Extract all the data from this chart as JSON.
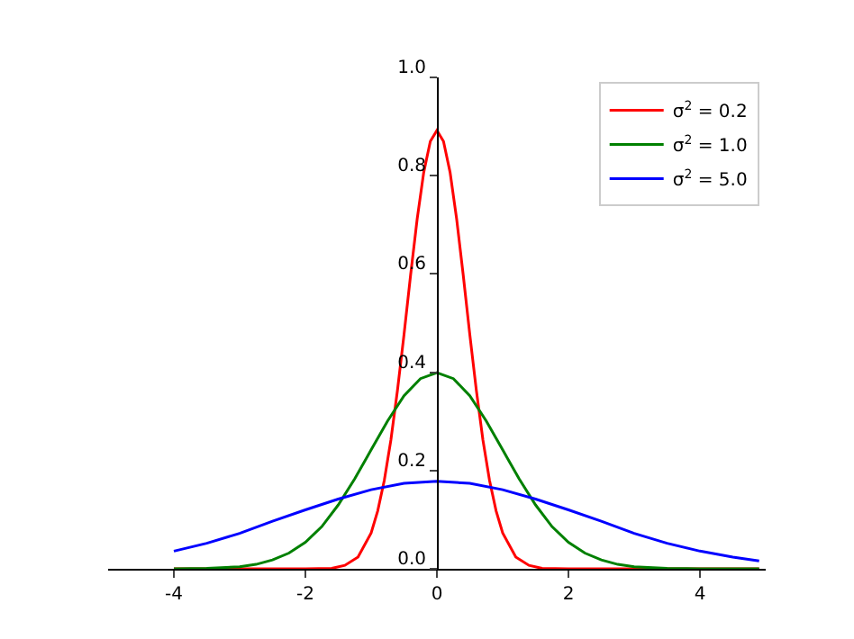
{
  "chart_data": {
    "type": "line",
    "xlim": [
      -5,
      5
    ],
    "ylim": [
      0,
      1
    ],
    "xticks": [
      -4,
      -2,
      0,
      2,
      4
    ],
    "yticks": [
      {
        "value": 0,
        "label": "0.0"
      },
      0.2,
      0.4,
      0.6,
      0.8,
      {
        "value": 1,
        "label": "1.0"
      }
    ],
    "legend": "top right",
    "marker": "none",
    "line_style": "solid",
    "series": [
      {
        "name": "σ$^{2}$ = 0.2",
        "color": "#ff0000",
        "x": [
          -4,
          -2,
          -1.6,
          -1.4,
          -1.2,
          -1,
          -0.9,
          -0.8,
          -0.7,
          -0.6,
          -0.5,
          -0.4,
          -0.3,
          -0.2,
          -0.1,
          0,
          0.1,
          0.2,
          0.3,
          0.4,
          0.5,
          0.6,
          0.7,
          0.8,
          0.9,
          1,
          1.2,
          1.4,
          1.6,
          2,
          4.9
        ],
        "values": [
          0,
          0,
          0.001,
          0.007,
          0.024,
          0.073,
          0.118,
          0.18,
          0.262,
          0.363,
          0.477,
          0.598,
          0.712,
          0.807,
          0.87,
          0.892,
          0.87,
          0.807,
          0.712,
          0.598,
          0.477,
          0.363,
          0.262,
          0.18,
          0.118,
          0.073,
          0.024,
          0.007,
          0.001,
          0,
          0
        ]
      },
      {
        "name": "σ$^{2}$ = 1.0",
        "color": "#008000",
        "x": [
          -4,
          -3.5,
          -3,
          -2.75,
          -2.5,
          -2.25,
          -2,
          -1.75,
          -1.5,
          -1.25,
          -1,
          -0.75,
          -0.5,
          -0.25,
          0,
          0.25,
          0.5,
          0.75,
          1,
          1.25,
          1.5,
          1.75,
          2,
          2.25,
          2.5,
          2.75,
          3,
          3.5,
          4,
          4.9
        ],
        "values": [
          0,
          0.001,
          0.004,
          0.009,
          0.018,
          0.032,
          0.054,
          0.086,
          0.13,
          0.183,
          0.242,
          0.301,
          0.352,
          0.387,
          0.399,
          0.387,
          0.352,
          0.301,
          0.242,
          0.183,
          0.13,
          0.086,
          0.054,
          0.032,
          0.018,
          0.009,
          0.004,
          0.001,
          0,
          0
        ]
      },
      {
        "name": "σ$^{2}$ = 5.0",
        "color": "#0000ff",
        "x": [
          -4,
          -3.5,
          -3,
          -2.5,
          -2,
          -1.5,
          -1,
          -0.5,
          0,
          0.5,
          1,
          1.5,
          2,
          2.5,
          3,
          3.5,
          4,
          4.5,
          4.9
        ],
        "values": [
          0.036,
          0.052,
          0.072,
          0.097,
          0.12,
          0.142,
          0.161,
          0.174,
          0.178,
          0.174,
          0.161,
          0.142,
          0.12,
          0.097,
          0.072,
          0.052,
          0.036,
          0.024,
          0.016
        ]
      }
    ]
  }
}
